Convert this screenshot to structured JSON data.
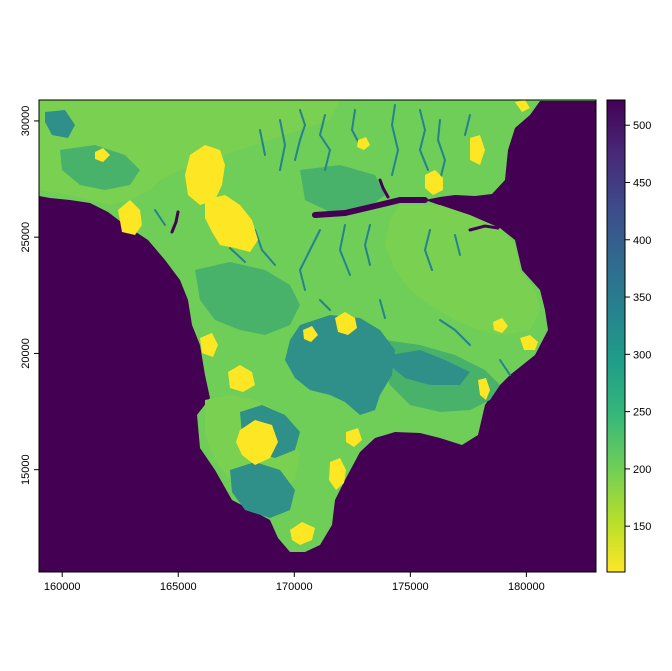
{
  "chart_data": {
    "type": "heatmap",
    "title": "",
    "xlabel": "",
    "ylabel": "",
    "xlim": [
      159000,
      183000
    ],
    "ylim": [
      10600,
      30900
    ],
    "x_ticks": [
      160000,
      165000,
      170000,
      175000,
      180000
    ],
    "y_ticks": [
      15000,
      20000,
      25000,
      30000
    ],
    "colorbar": {
      "range": [
        110,
        522
      ],
      "ticks": [
        150,
        200,
        250,
        300,
        350,
        400,
        450,
        500
      ],
      "palette": [
        "#fde725",
        "#b5de2b",
        "#6ece58",
        "#35b779",
        "#1f9e89",
        "#26828e",
        "#31688e",
        "#3e4989",
        "#482878",
        "#440154"
      ]
    },
    "colors": {
      "sea": "#440154",
      "land_base": "#6ece58",
      "land_light": "#7ad151",
      "land_mid": "#48b26a",
      "basin": "#2e9088",
      "estuary": "#26828e",
      "urban": "#fde725"
    }
  }
}
